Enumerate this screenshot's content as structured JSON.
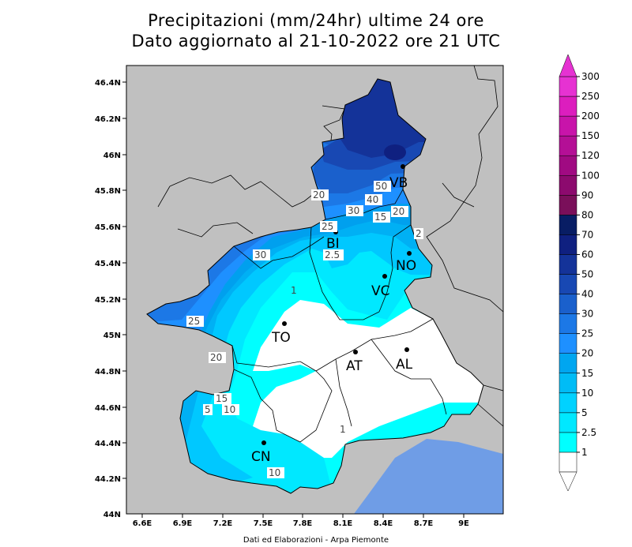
{
  "header": {
    "title_line1": "Precipitazioni (mm/24hr) ultime 24 ore",
    "title_line2": "Dato aggiornato al 21-10-2022 ore 21 UTC"
  },
  "credit": "Dati ed Elaborazioni - Arpa Piemonte",
  "map": {
    "lat_ticks": [
      "46.4N",
      "46.2N",
      "46N",
      "45.8N",
      "45.6N",
      "45.4N",
      "45.2N",
      "45N",
      "44.8N",
      "44.6N",
      "44.4N",
      "44.2N",
      "44N"
    ],
    "lon_ticks": [
      "6.6E",
      "6.9E",
      "7.2E",
      "7.5E",
      "7.8E",
      "8.1E",
      "8.4E",
      "8.7E",
      "9E"
    ],
    "cities": [
      {
        "label": "VB"
      },
      {
        "label": "BI"
      },
      {
        "label": "NO"
      },
      {
        "label": "VC"
      },
      {
        "label": "TO"
      },
      {
        "label": "AT"
      },
      {
        "label": "AL"
      },
      {
        "label": "CN"
      }
    ],
    "contour_labels": [
      "50",
      "40",
      "30",
      "20",
      "15",
      "20",
      "25",
      "2.5",
      "2",
      "30",
      "25",
      "20",
      "15",
      "5",
      "10",
      "1",
      "1",
      "10"
    ]
  },
  "colorbar": {
    "ticks": [
      "300",
      "250",
      "200",
      "150",
      "120",
      "100",
      "90",
      "80",
      "70",
      "60",
      "50",
      "40",
      "30",
      "25",
      "20",
      "15",
      "10",
      "5",
      "2.5",
      "1"
    ],
    "colors": [
      "#ffffff",
      "#00ffff",
      "#00e8ff",
      "#00d2ff",
      "#00bcf6",
      "#00a6f0",
      "#1e90ff",
      "#1c78e6",
      "#1a60cc",
      "#1848b3",
      "#143399",
      "#0f2080",
      "#081d64",
      "#7a0f5a",
      "#8c0a6e",
      "#a00a82",
      "#b40f96",
      "#c814aa",
      "#dc1ebe",
      "#e632d2"
    ]
  }
}
